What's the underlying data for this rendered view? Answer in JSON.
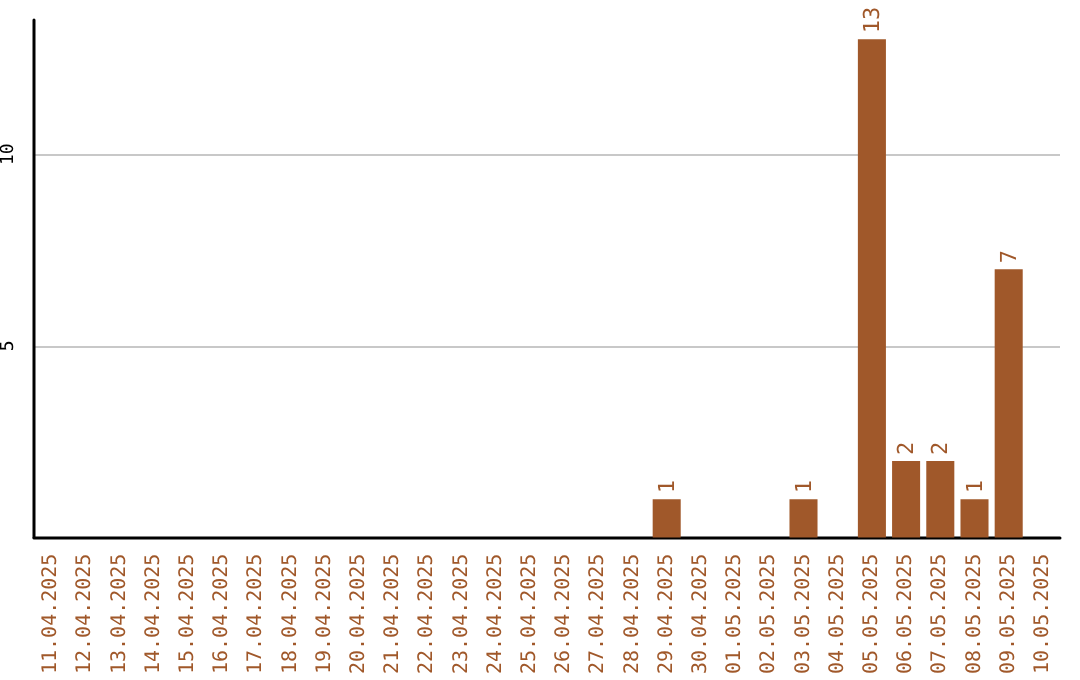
{
  "chart_data": {
    "type": "bar",
    "categories": [
      "11.04.2025",
      "12.04.2025",
      "13.04.2025",
      "14.04.2025",
      "15.04.2025",
      "16.04.2025",
      "17.04.2025",
      "18.04.2025",
      "19.04.2025",
      "20.04.2025",
      "21.04.2025",
      "22.04.2025",
      "23.04.2025",
      "24.04.2025",
      "25.04.2025",
      "26.04.2025",
      "27.04.2025",
      "28.04.2025",
      "29.04.2025",
      "30.04.2025",
      "01.05.2025",
      "02.05.2025",
      "03.05.2025",
      "04.05.2025",
      "05.05.2025",
      "06.05.2025",
      "07.05.2025",
      "08.05.2025",
      "09.05.2025",
      "10.05.2025"
    ],
    "values": [
      0,
      0,
      0,
      0,
      0,
      0,
      0,
      0,
      0,
      0,
      0,
      0,
      0,
      0,
      0,
      0,
      0,
      0,
      1,
      0,
      0,
      0,
      1,
      0,
      13,
      2,
      2,
      1,
      7,
      0
    ],
    "value_labels": [
      null,
      null,
      null,
      null,
      null,
      null,
      null,
      null,
      null,
      null,
      null,
      null,
      null,
      null,
      null,
      null,
      null,
      null,
      "1",
      null,
      null,
      null,
      "1",
      null,
      "13",
      "2",
      "2",
      "1",
      "7",
      null
    ],
    "color": "#a0582a",
    "ylim": [
      0,
      13.5
    ],
    "yticks": [
      5,
      10
    ],
    "grid": "y"
  }
}
